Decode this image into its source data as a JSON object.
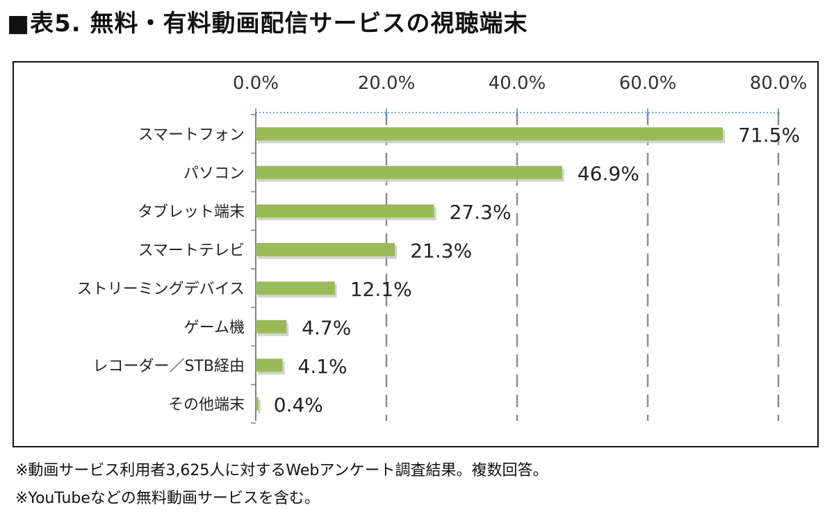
{
  "title": "■表5. 無料・有料動画配信サービスの視聴端末",
  "notes": [
    "※動画サービス利用者3,625人に対するWebアンケート調査結果。複数回答。",
    "※YouTubeなどの無料動画サービスを含む。"
  ],
  "chart_data": {
    "type": "bar",
    "orientation": "horizontal",
    "categories": [
      "スマートフォン",
      "パソコン",
      "タブレット端末",
      "スマートテレビ",
      "ストリーミングデバイス",
      "ゲーム機",
      "レコーダー／STB経由",
      "その他端末"
    ],
    "values": [
      71.5,
      46.9,
      27.3,
      21.3,
      12.1,
      4.7,
      4.1,
      0.4
    ],
    "data_labels": [
      "71.5%",
      "46.9%",
      "27.3%",
      "21.3%",
      "12.1%",
      "4.7%",
      "4.1%",
      "0.4%"
    ],
    "xlim": [
      0,
      80
    ],
    "ticks": [
      0,
      20,
      40,
      60,
      80
    ],
    "tick_labels": [
      "0.0%",
      "20.0%",
      "40.0%",
      "60.0%",
      "80.0%"
    ],
    "axis_position": "top",
    "grid": "dashed-vertical",
    "bar_color": "#9bbb59",
    "title": "",
    "xlabel": "",
    "ylabel": ""
  }
}
